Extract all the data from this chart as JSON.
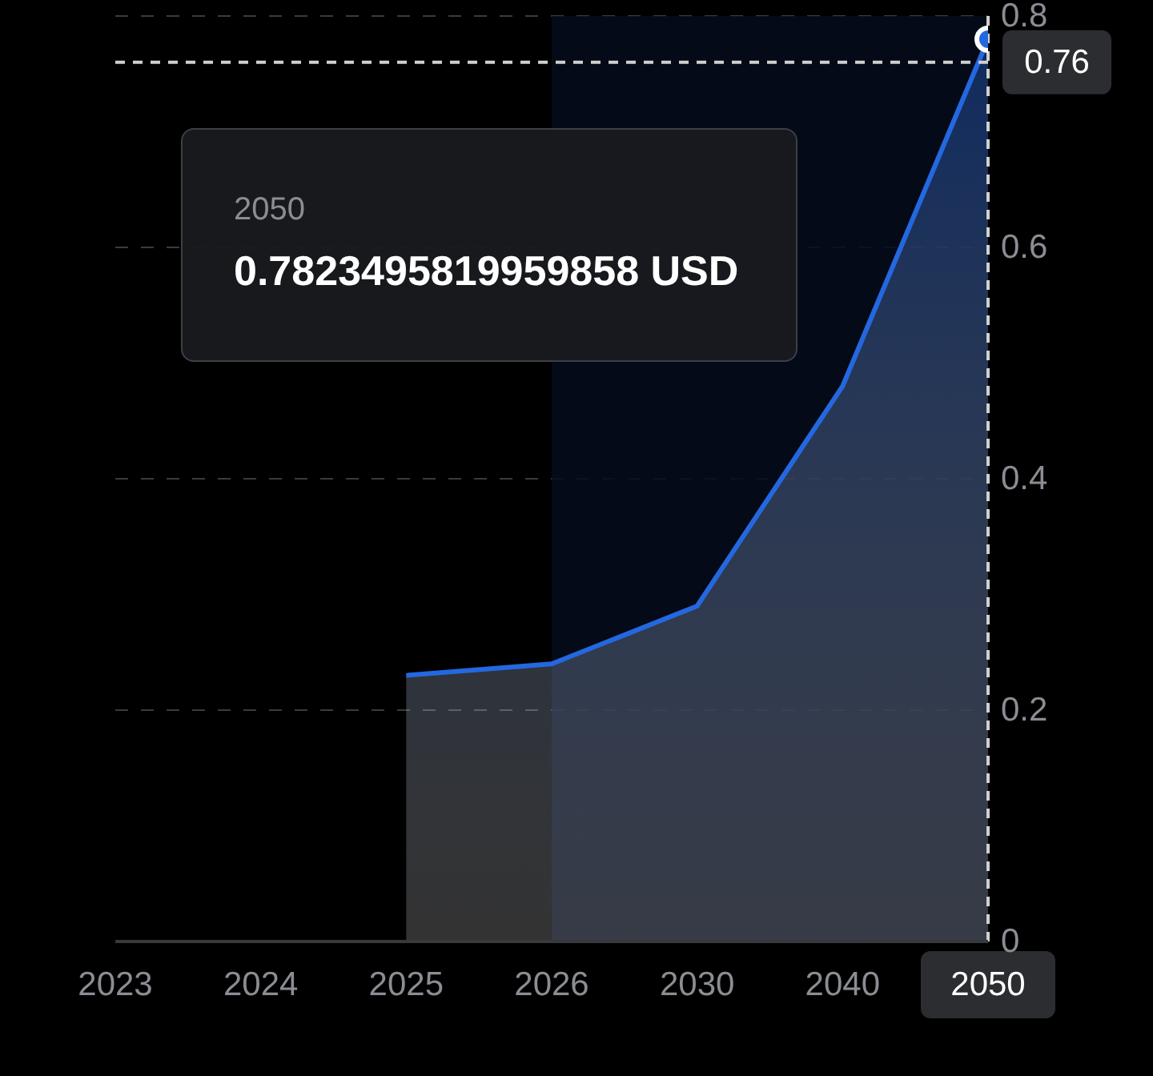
{
  "chart_data": {
    "type": "area",
    "categories": [
      "2023",
      "2024",
      "2025",
      "2026",
      "2030",
      "2040",
      "2050"
    ],
    "series": [
      {
        "color": "#2468e0",
        "values": [
          null,
          null,
          0.23,
          0.24,
          0.29,
          0.48,
          0.78
        ],
        "marker": "none"
      },
      {
        "type": "scatter",
        "color": "#ffffff",
        "values": [
          null,
          null,
          null,
          null,
          null,
          null,
          0.78
        ],
        "marker": "circle"
      }
    ],
    "ylim": [
      0,
      0.8
    ],
    "yticks": [
      0,
      0.2,
      0.4,
      0.6,
      0.8
    ],
    "grid": "y",
    "ref_lines": [
      {
        "axis": "x",
        "value": "2050",
        "color": "#d0d0d0",
        "line_style": "dashed"
      },
      {
        "axis": "y",
        "value": 0.76,
        "label": "0.76",
        "color": "#d0d0d0",
        "line_style": "dashed"
      }
    ],
    "bands": [
      {
        "axis": "x",
        "from": "2026",
        "to": "2050",
        "color": "#050c1c"
      }
    ],
    "annotations": [
      "2050",
      "0.7823495819959858 USD"
    ]
  }
}
